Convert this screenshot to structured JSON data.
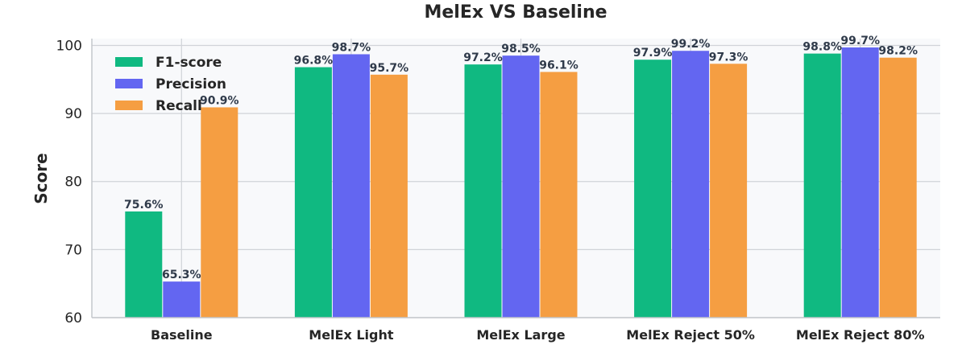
{
  "chart_data": {
    "type": "bar",
    "title": "MelEx VS Baseline",
    "xlabel": "",
    "ylabel": "Score",
    "ylim": [
      60,
      101
    ],
    "yticks": [
      60,
      70,
      80,
      90,
      100
    ],
    "grid": true,
    "legend_position": "top-left",
    "categories": [
      "Baseline",
      "MelEx Light",
      "MelEx Large",
      "MelEx Reject 50%",
      "MelEx Reject 80%"
    ],
    "series": [
      {
        "name": "F1-score",
        "color": "#10b981",
        "values": [
          75.6,
          96.8,
          97.2,
          97.9,
          98.8
        ],
        "labels": [
          "75.6%",
          "96.8%",
          "97.2%",
          "97.9%",
          "98.8%"
        ]
      },
      {
        "name": "Precision",
        "color": "#6366f1",
        "values": [
          65.3,
          98.7,
          98.5,
          99.2,
          99.7
        ],
        "labels": [
          "65.3%",
          "98.7%",
          "98.5%",
          "99.2%",
          "99.7%"
        ]
      },
      {
        "name": "Recall",
        "color": "#f59e42",
        "values": [
          90.9,
          95.7,
          96.1,
          97.3,
          98.2
        ],
        "labels": [
          "90.9%",
          "95.7%",
          "96.1%",
          "97.3%",
          "98.2%"
        ]
      }
    ]
  }
}
